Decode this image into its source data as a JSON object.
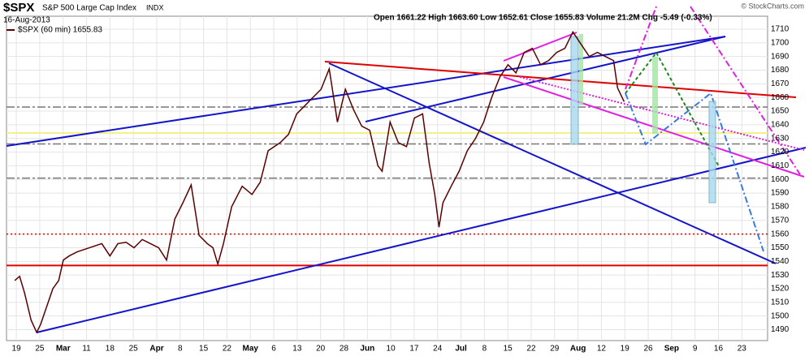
{
  "chart_data": {
    "type": "line",
    "title": "$SPX",
    "subtitle": "S&P 500 Large Cap Index",
    "exchange": "INDX",
    "date": "16-Aug-2013",
    "quote": "Open 1661.22 High 1663.60 Low 1652.61 Close 1655.83 Volume 21.2M Chg -5.49 (-0.33%)",
    "credit": "© StockCharts.com",
    "grid": true,
    "xlim": [
      -0.42,
      32.1
    ],
    "ylim": [
      1482,
      1719.5
    ],
    "xticks": [
      {
        "value": 0,
        "label": "19"
      },
      {
        "value": 1,
        "label": "25"
      },
      {
        "value": 2,
        "label": "Mar"
      },
      {
        "value": 3,
        "label": "11"
      },
      {
        "value": 4,
        "label": "18"
      },
      {
        "value": 5,
        "label": "25"
      },
      {
        "value": 6,
        "label": "Apr"
      },
      {
        "value": 7,
        "label": "8"
      },
      {
        "value": 8,
        "label": "15"
      },
      {
        "value": 9,
        "label": "22"
      },
      {
        "value": 10,
        "label": "May"
      },
      {
        "value": 11,
        "label": "6"
      },
      {
        "value": 12,
        "label": "13"
      },
      {
        "value": 13,
        "label": "20"
      },
      {
        "value": 14,
        "label": "28"
      },
      {
        "value": 15,
        "label": "Jun"
      },
      {
        "value": 16,
        "label": "10"
      },
      {
        "value": 17,
        "label": "17"
      },
      {
        "value": 18,
        "label": "24"
      },
      {
        "value": 19,
        "label": "Jul"
      },
      {
        "value": 20,
        "label": "8"
      },
      {
        "value": 21,
        "label": "15"
      },
      {
        "value": 22,
        "label": "22"
      },
      {
        "value": 23,
        "label": "29"
      },
      {
        "value": 24,
        "label": "Aug"
      },
      {
        "value": 25,
        "label": "12"
      },
      {
        "value": 26,
        "label": "19"
      },
      {
        "value": 27,
        "label": "26"
      },
      {
        "value": 28,
        "label": "Sep"
      },
      {
        "value": 29,
        "label": "9"
      },
      {
        "value": 30,
        "label": "16"
      },
      {
        "value": 31,
        "label": "23"
      }
    ],
    "yticks": [
      1490,
      1500,
      1510,
      1520,
      1530,
      1540,
      1550,
      1560,
      1570,
      1580,
      1590,
      1600,
      1610,
      1620,
      1630,
      1640,
      1650,
      1660,
      1670,
      1680,
      1690,
      1700,
      1710
    ],
    "levels": [
      {
        "value": 1537,
        "color": "#e00000",
        "style": "solid"
      },
      {
        "value": 1560,
        "color": "#e00000",
        "style": "dotted"
      },
      {
        "value": 1653,
        "color": "#777777",
        "style": "dashdot"
      },
      {
        "value": 1626,
        "color": "#777777",
        "style": "dashdot"
      },
      {
        "value": 1601,
        "color": "#777777",
        "style": "dashdot"
      },
      {
        "value": 1634,
        "color": "#f4f08a",
        "style": "solid"
      }
    ],
    "series": [
      {
        "name": "$SPX (60 min) 1655.83",
        "color": "#5a0000",
        "x": [
          -0.07,
          0.14,
          0.35,
          0.63,
          0.87,
          1.04,
          1.32,
          1.56,
          1.81,
          2.01,
          2.26,
          2.6,
          3.13,
          3.65,
          4.0,
          4.34,
          4.69,
          5.03,
          5.38,
          5.73,
          6.08,
          6.42,
          6.77,
          7.12,
          7.47,
          7.81,
          8.16,
          8.4,
          8.61,
          8.85,
          9.2,
          9.65,
          10.07,
          10.42,
          10.76,
          11.28,
          11.63,
          11.98,
          12.33,
          12.67,
          13.02,
          13.37,
          13.72,
          14.06,
          14.41,
          14.76,
          15.1,
          15.45,
          15.63,
          15.97,
          16.32,
          16.67,
          17.01,
          17.36,
          17.64,
          17.88,
          18.06,
          18.23,
          18.58,
          18.92,
          19.27,
          19.62,
          19.97,
          20.31,
          20.66,
          21.01,
          21.35,
          21.7,
          22.05,
          22.4,
          22.74,
          23.09,
          23.44,
          23.78,
          24.13,
          24.48,
          24.83,
          25.17,
          25.52,
          25.69,
          25.97
        ],
        "values": [
          1526,
          1529,
          1517,
          1497,
          1488,
          1494,
          1508,
          1520,
          1526,
          1541,
          1544,
          1547,
          1550,
          1553,
          1544,
          1553,
          1554,
          1550,
          1556,
          1553,
          1550,
          1541,
          1571,
          1583,
          1596,
          1559,
          1553,
          1550,
          1538,
          1553,
          1580,
          1595,
          1589,
          1598,
          1621,
          1627,
          1633,
          1648,
          1654,
          1660,
          1666,
          1681,
          1642,
          1666,
          1651,
          1639,
          1636,
          1610,
          1606,
          1642,
          1627,
          1624,
          1645,
          1648,
          1612,
          1589,
          1565,
          1583,
          1595,
          1606,
          1621,
          1630,
          1642,
          1660,
          1675,
          1684,
          1678,
          1693,
          1696,
          1684,
          1687,
          1693,
          1696,
          1708,
          1699,
          1690,
          1693,
          1690,
          1687,
          1667,
          1657
        ]
      }
    ]
  }
}
